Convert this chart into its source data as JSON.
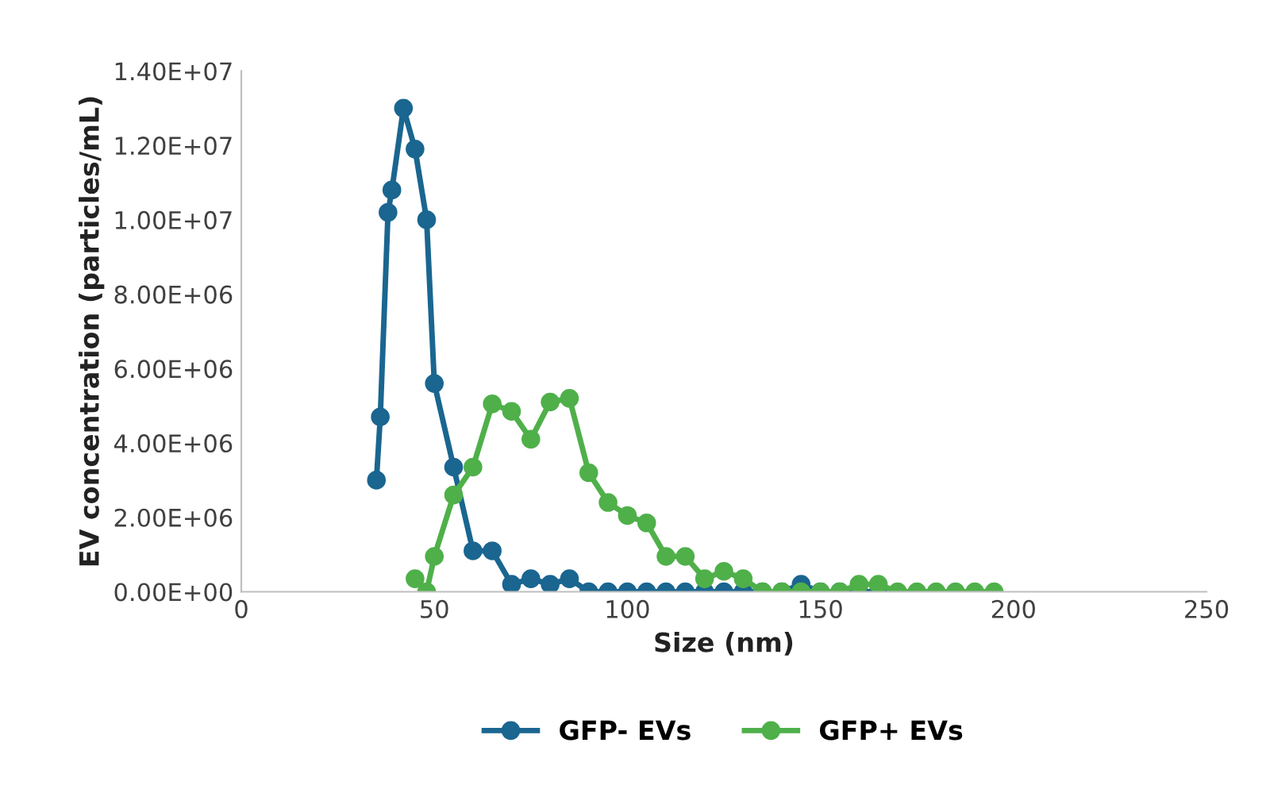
{
  "chart_data": {
    "type": "line",
    "xlabel": "Size (nm)",
    "ylabel": "EV concentration (particles/mL)",
    "xlim": [
      0,
      250
    ],
    "xticks": [
      0,
      50,
      100,
      150,
      200,
      250
    ],
    "ylim": [
      0,
      14000000
    ],
    "yticks": [
      {
        "value": 0,
        "label": "0.00E+00"
      },
      {
        "value": 2000000,
        "label": "2.00E+06"
      },
      {
        "value": 4000000,
        "label": "4.00E+06"
      },
      {
        "value": 6000000,
        "label": "6.00E+06"
      },
      {
        "value": 8000000,
        "label": "8.00E+06"
      },
      {
        "value": 10000000,
        "label": "1.00E+07"
      },
      {
        "value": 12000000,
        "label": "1.20E+07"
      },
      {
        "value": 14000000,
        "label": "1.40E+07"
      }
    ],
    "grid": false,
    "legend": "bottom",
    "marker": "circle",
    "line_style": "solid",
    "series": [
      {
        "name": "GFP- EVs",
        "color": "#1a6690",
        "x": [
          35,
          36,
          38,
          39,
          42,
          45,
          48,
          50,
          55,
          60,
          65,
          70,
          75,
          80,
          85,
          90,
          95,
          100,
          105,
          110,
          115,
          120,
          125,
          130,
          135,
          140,
          145,
          150,
          155,
          160,
          165
        ],
        "values": [
          3000000,
          4700000,
          10200000,
          10800000,
          13000000,
          11900000,
          10000000,
          5600000,
          3350000,
          1100000,
          1100000,
          200000,
          350000,
          200000,
          350000,
          0,
          0,
          0,
          0,
          0,
          0,
          0,
          0,
          0,
          0,
          0,
          200000,
          0,
          0,
          0,
          0
        ]
      },
      {
        "name": "GFP+ EVs",
        "color": "#4fb04a",
        "x": [
          45,
          48,
          50,
          55,
          60,
          65,
          70,
          75,
          80,
          85,
          90,
          95,
          100,
          105,
          110,
          115,
          120,
          125,
          130,
          135,
          140,
          145,
          150,
          155,
          160,
          165,
          170,
          175,
          180,
          185,
          190,
          195
        ],
        "values": [
          350000,
          0,
          950000,
          2600000,
          3350000,
          5050000,
          4850000,
          4100000,
          5100000,
          5200000,
          3200000,
          2400000,
          2050000,
          1850000,
          950000,
          950000,
          350000,
          550000,
          350000,
          0,
          0,
          0,
          0,
          0,
          200000,
          200000,
          0,
          0,
          0,
          0,
          0,
          0
        ]
      }
    ]
  }
}
